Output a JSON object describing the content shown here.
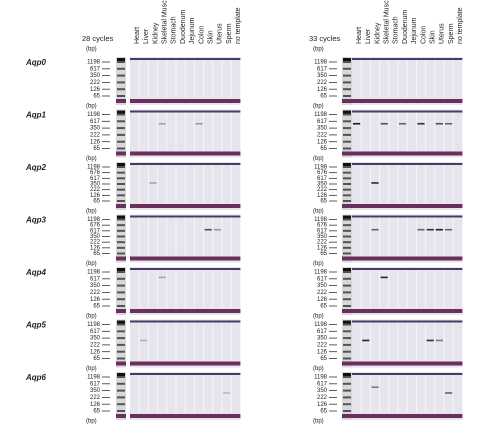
{
  "panels": [
    {
      "cycles": "28 cycles",
      "unit": "(bp)"
    },
    {
      "cycles": "33 cycles",
      "unit": "(bp)"
    }
  ],
  "lanes": [
    "Heart",
    "Liver",
    "Kidney",
    "Skeletal Muscle",
    "Stomach",
    "Duodenum",
    "Jejunum",
    "Colon",
    "Skin",
    "Uterus",
    "Sperm",
    "no template"
  ],
  "genes": [
    {
      "name": "Aqp0",
      "markers": [
        "1198",
        "617",
        "350",
        "222",
        "126",
        "65"
      ]
    },
    {
      "name": "Aqp1",
      "markers": [
        "1198",
        "617",
        "350",
        "222",
        "126",
        "65"
      ]
    },
    {
      "name": "Aqp2",
      "markers": [
        "1198",
        "676",
        "617",
        "350",
        "222",
        "126",
        "65"
      ]
    },
    {
      "name": "Aqp3",
      "markers": [
        "1198",
        "676",
        "617",
        "350",
        "222",
        "126",
        "65"
      ]
    },
    {
      "name": "Aqp4",
      "markers": [
        "1198",
        "617",
        "350",
        "222",
        "126",
        "65"
      ]
    },
    {
      "name": "Aqp5",
      "markers": [
        "1198",
        "617",
        "350",
        "222",
        "126",
        "65"
      ]
    },
    {
      "name": "Aqp6",
      "markers": [
        "1198",
        "617",
        "350",
        "222",
        "126",
        "65"
      ]
    }
  ]
}
